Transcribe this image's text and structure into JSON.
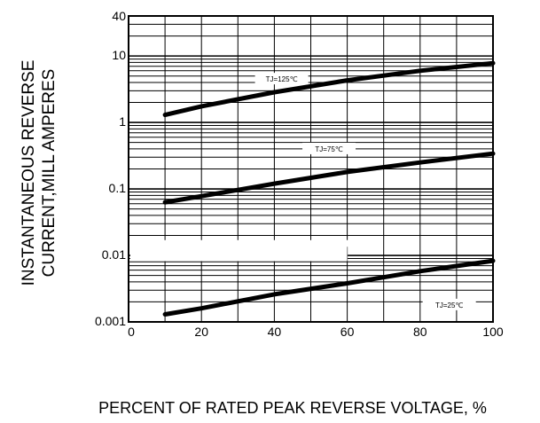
{
  "chart_data": {
    "type": "line",
    "y_scale": "log",
    "xlim": [
      0,
      100
    ],
    "ylim": [
      0.001,
      40
    ],
    "grid": true,
    "legend": "inline labels",
    "xlabel": "PERCENT OF RATED PEAK REVERSE VOLTAGE, %",
    "ylabel_lines": [
      "INSTANTANEOUS REVERSE",
      "CURRENT,MILL AMPERES"
    ],
    "x_ticks": [
      {
        "value": 0,
        "label": "0"
      },
      {
        "value": 20,
        "label": "20"
      },
      {
        "value": 40,
        "label": "40"
      },
      {
        "value": 60,
        "label": "60"
      },
      {
        "value": 80,
        "label": "80"
      },
      {
        "value": 100,
        "label": "100"
      }
    ],
    "y_ticks": [
      {
        "value": 0.001,
        "label": "0.001"
      },
      {
        "value": 0.01,
        "label": "0.01"
      },
      {
        "value": 0.1,
        "label": "0.1"
      },
      {
        "value": 1,
        "label": "1"
      },
      {
        "value": 10,
        "label": "10"
      },
      {
        "value": 40,
        "label": "40"
      }
    ],
    "series": [
      {
        "name": "TJ=125℃",
        "label_at": {
          "x": 42,
          "y": 4.5
        },
        "points": [
          [
            10,
            1.3
          ],
          [
            20,
            1.75
          ],
          [
            40,
            2.85
          ],
          [
            60,
            4.3
          ],
          [
            80,
            6.0
          ],
          [
            100,
            7.8
          ]
        ]
      },
      {
        "name": "TJ=75℃",
        "label_at": {
          "x": 55,
          "y": 0.4
        },
        "points": [
          [
            10,
            0.063
          ],
          [
            20,
            0.078
          ],
          [
            40,
            0.12
          ],
          [
            60,
            0.18
          ],
          [
            80,
            0.25
          ],
          [
            100,
            0.34
          ]
        ]
      },
      {
        "name": "TJ=25℃",
        "label_at": {
          "x": 88,
          "y": 0.0018
        },
        "points": [
          [
            10,
            0.0013
          ],
          [
            20,
            0.0016
          ],
          [
            40,
            0.0026
          ],
          [
            60,
            0.0038
          ],
          [
            80,
            0.0058
          ],
          [
            100,
            0.0083
          ]
        ]
      }
    ]
  }
}
